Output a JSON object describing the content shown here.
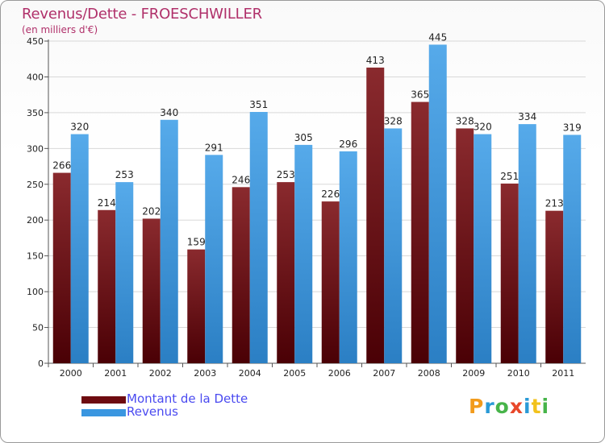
{
  "title": "Revenus/Dette - FROESCHWILLER",
  "subtitle": "(en milliers d'€)",
  "logo": {
    "letters": [
      "P",
      "r",
      "o",
      "x",
      "i",
      "t",
      "i"
    ],
    "colors": [
      "#f29b1c",
      "#2a9ad6",
      "#47b44a",
      "#e8472a",
      "#2a9ad6",
      "#f2c21c",
      "#47b44a"
    ]
  },
  "chart_data": {
    "type": "bar",
    "title": "Revenus/Dette - FROESCHWILLER",
    "ylabel": "(en milliers d'€)",
    "ylim": [
      0,
      450
    ],
    "yticks": [
      0,
      50,
      100,
      150,
      200,
      250,
      300,
      350,
      400,
      450
    ],
    "categories": [
      "2000",
      "2001",
      "2002",
      "2003",
      "2004",
      "2005",
      "2006",
      "2007",
      "2008",
      "2009",
      "2010",
      "2011"
    ],
    "series": [
      {
        "name": "Montant de la Dette",
        "color": "#6e0b10",
        "values": [
          266,
          214,
          202,
          159,
          246,
          253,
          226,
          413,
          365,
          328,
          251,
          213
        ]
      },
      {
        "name": "Revenus",
        "color": "#3a96e0",
        "values": [
          320,
          253,
          340,
          291,
          351,
          305,
          296,
          328,
          445,
          320,
          334,
          319
        ]
      }
    ],
    "legend": "bottom-left",
    "grid": true
  }
}
